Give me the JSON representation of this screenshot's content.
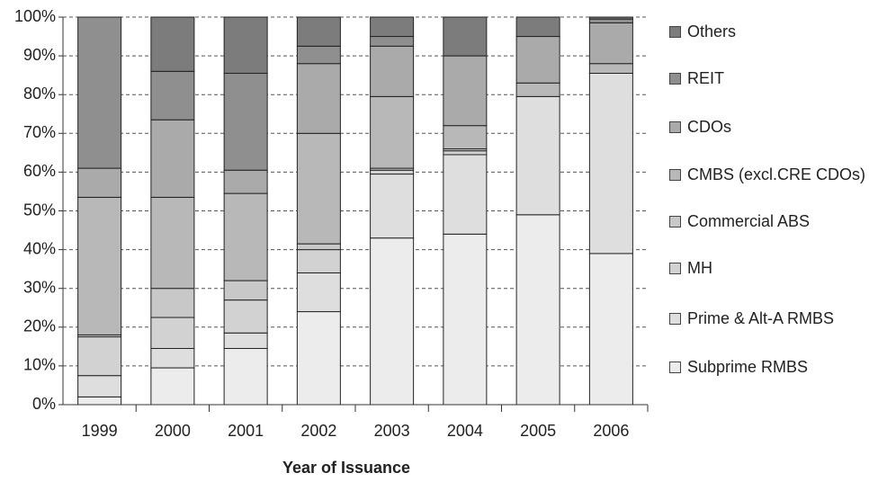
{
  "chart_data": {
    "type": "stacked_bar",
    "x_label": "Year of Issuance",
    "categories": [
      "1999",
      "2000",
      "2001",
      "2002",
      "2003",
      "2004",
      "2005",
      "2006"
    ],
    "series": [
      {
        "name": "Subprime  RMBS",
        "color": "#ececec",
        "values": [
          2,
          9.5,
          14.5,
          24,
          43,
          44,
          49,
          39
        ]
      },
      {
        "name": "Prime & Alt-A RMBS",
        "color": "#dedede",
        "values": [
          5.5,
          5,
          4,
          10,
          16.5,
          20.5,
          30.5,
          46.5
        ]
      },
      {
        "name": "MH",
        "color": "#d2d2d2",
        "values": [
          10,
          8,
          8.5,
          6,
          1,
          1,
          0,
          0
        ]
      },
      {
        "name": "Commercial ABS",
        "color": "#c8c8c8",
        "values": [
          0.5,
          7.5,
          5,
          1.5,
          0.5,
          0.5,
          0,
          0
        ]
      },
      {
        "name": "CMBS (excl.CRE CDOs)",
        "color": "#b8b8b8",
        "values": [
          35.5,
          23.5,
          22.5,
          28.5,
          18.5,
          6,
          3.5,
          2.5
        ]
      },
      {
        "name": "CDOs",
        "color": "#aaaaaa",
        "values": [
          7.5,
          20,
          6,
          18,
          13,
          18,
          12,
          10.5
        ]
      },
      {
        "name": "REIT",
        "color": "#8f8f8f",
        "values": [
          39,
          12.5,
          25,
          4.5,
          2.5,
          0,
          0,
          1
        ]
      },
      {
        "name": "Others",
        "color": "#7c7c7c",
        "values": [
          0,
          14,
          14.5,
          7.5,
          5,
          10,
          5,
          0.5
        ]
      }
    ],
    "ylim": [
      0,
      100
    ],
    "yticks": [
      {
        "value": 0,
        "label": "0%"
      },
      {
        "value": 10,
        "label": "10%"
      },
      {
        "value": 20,
        "label": "20%"
      },
      {
        "value": 30,
        "label": "30%"
      },
      {
        "value": 40,
        "label": "40%"
      },
      {
        "value": 50,
        "label": "50%"
      },
      {
        "value": 60,
        "label": "60%"
      },
      {
        "value": 70,
        "label": "70%"
      },
      {
        "value": 80,
        "label": "80%"
      },
      {
        "value": 90,
        "label": "90%"
      },
      {
        "value": 100,
        "label": "100%"
      }
    ],
    "grid": true
  }
}
